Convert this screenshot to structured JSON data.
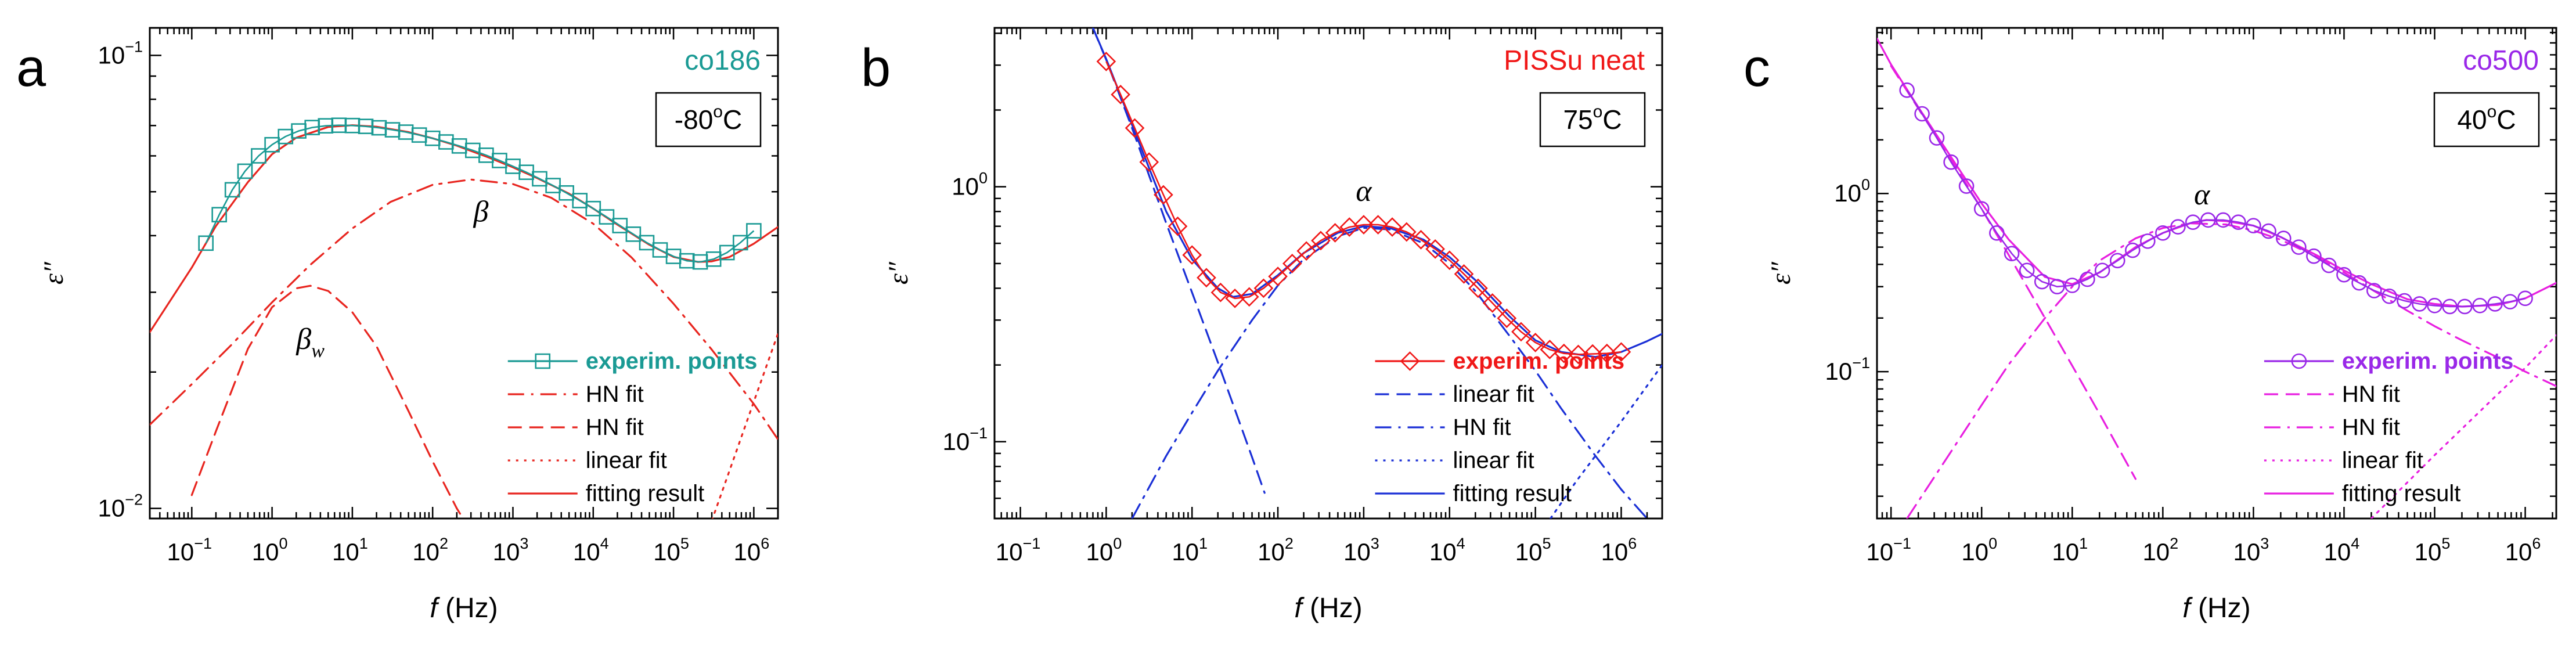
{
  "chart_data": [
    {
      "type": "line",
      "panel_letter": "a",
      "sample_label": "co186",
      "sample_color": "#1a9a94",
      "temperature": "-80",
      "temperature_unit": "°C",
      "xlabel_var": "f",
      "xlabel_unit": " (Hz)",
      "ylabel": "ε″",
      "x_scale": "log",
      "y_scale": "log",
      "xlim": [
        0.03,
        2000000
      ],
      "ylim": [
        0.0095,
        0.115
      ],
      "x_tick_exponents": [
        -1,
        0,
        1,
        2,
        3,
        4,
        5,
        6
      ],
      "y_tick_exponents": [
        -2,
        -1
      ],
      "peak_labels": [
        {
          "text": "β",
          "sub": "",
          "x": 400,
          "y": 0.043
        },
        {
          "text": "β",
          "sub": "w",
          "x": 3,
          "y": 0.0225
        }
      ],
      "legend": [
        "experim. points",
        "HN fit",
        "HN fit",
        "linear fit",
        "fitting result"
      ],
      "series": [
        {
          "name": "experim. points",
          "style": "points",
          "marker": "square",
          "color": "#1a9a94",
          "x": [
            0.15,
            0.22,
            0.32,
            0.46,
            0.68,
            1,
            1.47,
            2.15,
            3.16,
            4.64,
            6.81,
            10,
            14.7,
            21.5,
            31.6,
            46.4,
            68.1,
            100,
            147,
            215,
            316,
            464,
            681,
            1000,
            1470,
            2150,
            3160,
            4640,
            6810,
            10000,
            14700,
            21500,
            31600,
            46400,
            68100,
            100000,
            147000,
            215000,
            316000,
            464000,
            681000,
            1000000
          ],
          "y": [
            0.0385,
            0.0445,
            0.0505,
            0.0555,
            0.06,
            0.0635,
            0.0662,
            0.0681,
            0.0693,
            0.0699,
            0.0701,
            0.07,
            0.0697,
            0.0692,
            0.0685,
            0.0677,
            0.0667,
            0.0656,
            0.0644,
            0.0631,
            0.0617,
            0.0602,
            0.0586,
            0.0569,
            0.0552,
            0.0534,
            0.0516,
            0.0497,
            0.0478,
            0.0459,
            0.044,
            0.0421,
            0.0403,
            0.0386,
            0.0372,
            0.036,
            0.0352,
            0.035,
            0.0355,
            0.0367,
            0.0386,
            0.041
          ]
        },
        {
          "name": "HN fit",
          "style": "dashdot",
          "color": "#e8251f",
          "x": [
            0.03,
            0.1,
            0.3,
            1,
            3,
            10,
            30,
            100,
            300,
            1000,
            3000,
            10000,
            30000,
            100000,
            300000,
            1000000,
            2000000
          ],
          "y": [
            0.0153,
            0.0188,
            0.0228,
            0.0285,
            0.0345,
            0.0415,
            0.0475,
            0.0518,
            0.0532,
            0.052,
            0.0485,
            0.0425,
            0.0358,
            0.0283,
            0.0224,
            0.017,
            0.0142
          ]
        },
        {
          "name": "HN fit",
          "style": "dashed",
          "color": "#e8251f",
          "x": [
            0.1,
            0.2,
            0.5,
            1,
            2,
            3,
            5,
            10,
            20,
            50,
            100,
            200,
            300
          ],
          "y": [
            0.0107,
            0.0148,
            0.0225,
            0.0278,
            0.0306,
            0.031,
            0.0302,
            0.0271,
            0.0228,
            0.0164,
            0.0127,
            0.01,
            0.0089
          ]
        },
        {
          "name": "linear fit",
          "style": "dotted",
          "color": "#e8251f",
          "x": [
            300000,
            600000,
            1000000,
            2000000
          ],
          "y": [
            0.0094,
            0.0133,
            0.0172,
            0.0243
          ]
        },
        {
          "name": "fitting result",
          "style": "solid",
          "color": "#e8251f",
          "x": [
            0.03,
            0.1,
            0.2,
            0.5,
            1,
            2,
            5,
            10,
            20,
            50,
            100,
            200,
            500,
            1000,
            2000,
            5000,
            10000,
            20000,
            50000,
            100000,
            200000,
            300000,
            500000,
            1000000,
            2000000
          ],
          "y": [
            0.0245,
            0.034,
            0.042,
            0.0525,
            0.0605,
            0.0658,
            0.0695,
            0.0701,
            0.0696,
            0.0677,
            0.0656,
            0.0632,
            0.0595,
            0.0566,
            0.0536,
            0.0495,
            0.0459,
            0.0423,
            0.0382,
            0.0359,
            0.035,
            0.0351,
            0.0359,
            0.0384,
            0.0418
          ]
        }
      ]
    },
    {
      "type": "line",
      "panel_letter": "b",
      "sample_label": "PISSu neat",
      "sample_color": "#f01818",
      "temperature": "75",
      "temperature_unit": "°C",
      "xlabel_var": "f",
      "xlabel_unit": " (Hz)",
      "ylabel": "ε″",
      "x_scale": "log",
      "y_scale": "log",
      "xlim": [
        0.05,
        3000000
      ],
      "ylim": [
        0.05,
        4.2
      ],
      "x_tick_exponents": [
        -1,
        0,
        1,
        2,
        3,
        4,
        5,
        6
      ],
      "y_tick_exponents": [
        -1,
        0
      ],
      "peak_labels": [
        {
          "text": "α",
          "sub": "",
          "x": 1000,
          "y": 0.88
        }
      ],
      "legend": [
        "experim. points",
        "linear fit",
        "HN fit",
        "linear fit",
        "fitting result"
      ],
      "series": [
        {
          "name": "experim. points",
          "style": "points",
          "marker": "diamond",
          "color": "#f01818",
          "x": [
            1,
            1.47,
            2.15,
            3.16,
            4.64,
            6.81,
            10,
            14.7,
            21.5,
            31.6,
            46.4,
            68.1,
            100,
            147,
            215,
            316,
            464,
            681,
            1000,
            1470,
            2150,
            3160,
            4640,
            6810,
            10000,
            14700,
            21500,
            31600,
            46400,
            68100,
            100000,
            147000,
            215000,
            316000,
            464000,
            681000,
            1000000
          ],
          "y": [
            3.1,
            2.3,
            1.7,
            1.25,
            0.93,
            0.7,
            0.54,
            0.44,
            0.385,
            0.365,
            0.37,
            0.4,
            0.445,
            0.5,
            0.56,
            0.615,
            0.66,
            0.695,
            0.71,
            0.71,
            0.695,
            0.665,
            0.62,
            0.57,
            0.515,
            0.455,
            0.4,
            0.35,
            0.305,
            0.27,
            0.245,
            0.23,
            0.222,
            0.22,
            0.221,
            0.222,
            0.225
          ]
        },
        {
          "name": "linear fit",
          "style": "dashed",
          "color": "#1a2fd6",
          "x": [
            0.7,
            1,
            2,
            5,
            10,
            20,
            50,
            70
          ],
          "y": [
            4.2,
            3.15,
            1.7,
            0.72,
            0.385,
            0.205,
            0.087,
            0.063
          ]
        },
        {
          "name": "HN fit",
          "style": "dashdot",
          "color": "#1a2fd6",
          "x": [
            2,
            5,
            10,
            20,
            50,
            100,
            200,
            500,
            1000,
            2000,
            5000,
            10000,
            20000,
            50000,
            100000,
            200000,
            500000,
            1000000,
            2000000
          ],
          "y": [
            0.05,
            0.088,
            0.13,
            0.19,
            0.3,
            0.41,
            0.52,
            0.64,
            0.69,
            0.68,
            0.6,
            0.5,
            0.39,
            0.26,
            0.19,
            0.135,
            0.088,
            0.065,
            0.05
          ]
        },
        {
          "name": "linear fit",
          "style": "dotted",
          "color": "#1a2fd6",
          "x": [
            150000,
            300000,
            1000000,
            3000000
          ],
          "y": [
            0.05,
            0.07,
            0.12,
            0.2
          ]
        },
        {
          "name": "fitting result",
          "style": "solid",
          "color": "#1a2fd6",
          "x": [
            0.7,
            1,
            2,
            5,
            10,
            20,
            30,
            50,
            100,
            200,
            500,
            1000,
            2000,
            5000,
            10000,
            20000,
            50000,
            100000,
            200000,
            500000,
            1000000,
            2000000,
            3000000
          ],
          "y": [
            4.2,
            3.17,
            1.75,
            0.8,
            0.52,
            0.4,
            0.37,
            0.38,
            0.45,
            0.55,
            0.66,
            0.7,
            0.69,
            0.62,
            0.53,
            0.43,
            0.31,
            0.25,
            0.225,
            0.215,
            0.225,
            0.248,
            0.265
          ]
        }
      ]
    },
    {
      "type": "line",
      "panel_letter": "c",
      "sample_label": "co500",
      "sample_color": "#9a28e8",
      "temperature": "40",
      "temperature_unit": "°C",
      "xlabel_var": "f",
      "xlabel_unit": " (Hz)",
      "ylabel": "ε″",
      "x_scale": "log",
      "y_scale": "log",
      "xlim": [
        0.07,
        2200000
      ],
      "ylim": [
        0.015,
        8.5
      ],
      "x_tick_exponents": [
        -1,
        0,
        1,
        2,
        3,
        4,
        5,
        6
      ],
      "y_tick_exponents": [
        -1,
        0
      ],
      "peak_labels": [
        {
          "text": "α",
          "sub": "",
          "x": 270,
          "y": 0.87
        }
      ],
      "legend": [
        "experim. points",
        "HN fit",
        "HN fit",
        "linear fit",
        "fitting result"
      ],
      "series": [
        {
          "name": "experim. points",
          "style": "points",
          "marker": "circle",
          "color": "#9a28e8",
          "x": [
            0.15,
            0.22,
            0.32,
            0.46,
            0.68,
            1,
            1.47,
            2.15,
            3.16,
            4.64,
            6.81,
            10,
            14.7,
            21.5,
            31.6,
            46.4,
            68.1,
            100,
            147,
            215,
            316,
            464,
            681,
            1000,
            1470,
            2150,
            3160,
            4640,
            6810,
            10000,
            14700,
            21500,
            31600,
            46400,
            68100,
            100000,
            147000,
            215000,
            316000,
            464000,
            681000,
            1000000
          ],
          "y": [
            3.8,
            2.8,
            2.05,
            1.5,
            1.1,
            0.82,
            0.6,
            0.46,
            0.37,
            0.32,
            0.3,
            0.305,
            0.33,
            0.37,
            0.42,
            0.48,
            0.54,
            0.6,
            0.65,
            0.69,
            0.71,
            0.71,
            0.69,
            0.66,
            0.615,
            0.56,
            0.5,
            0.445,
            0.395,
            0.35,
            0.315,
            0.285,
            0.265,
            0.25,
            0.24,
            0.235,
            0.232,
            0.232,
            0.235,
            0.24,
            0.247,
            0.258
          ]
        },
        {
          "name": "HN fit",
          "style": "dashed",
          "color": "#e81fe0",
          "x": [
            0.1,
            0.2,
            0.5,
            1,
            2,
            5,
            10,
            20,
            50
          ],
          "y": [
            5.2,
            3.0,
            1.45,
            0.82,
            0.45,
            0.2,
            0.108,
            0.058,
            0.025
          ]
        },
        {
          "name": "HN fit",
          "style": "dashdot",
          "color": "#e81fe0",
          "x": [
            0.15,
            0.5,
            1,
            2,
            5,
            10,
            20,
            50,
            100,
            200,
            500,
            1000,
            2000,
            5000,
            10000,
            20000,
            50000,
            100000,
            200000,
            500000,
            1000000,
            2200000
          ],
          "y": [
            0.015,
            0.038,
            0.065,
            0.11,
            0.2,
            0.3,
            0.42,
            0.56,
            0.64,
            0.68,
            0.67,
            0.62,
            0.55,
            0.44,
            0.36,
            0.29,
            0.22,
            0.18,
            0.15,
            0.12,
            0.1,
            0.083
          ]
        },
        {
          "name": "linear fit",
          "style": "dotted",
          "color": "#e81fe0",
          "x": [
            20000,
            100000,
            500000,
            1000000,
            2200000
          ],
          "y": [
            0.015,
            0.034,
            0.075,
            0.105,
            0.16
          ]
        },
        {
          "name": "fitting result",
          "style": "solid",
          "color": "#e81fe0",
          "x": [
            0.07,
            0.1,
            0.2,
            0.5,
            1,
            2,
            5,
            10,
            20,
            50,
            100,
            200,
            300,
            500,
            1000,
            2000,
            5000,
            10000,
            20000,
            50000,
            100000,
            200000,
            500000,
            1000000,
            2200000
          ],
          "y": [
            7.4,
            5.3,
            3.05,
            1.5,
            0.88,
            0.55,
            0.34,
            0.31,
            0.36,
            0.5,
            0.6,
            0.68,
            0.71,
            0.7,
            0.66,
            0.57,
            0.45,
            0.37,
            0.31,
            0.255,
            0.24,
            0.232,
            0.237,
            0.258,
            0.315
          ]
        }
      ]
    }
  ]
}
